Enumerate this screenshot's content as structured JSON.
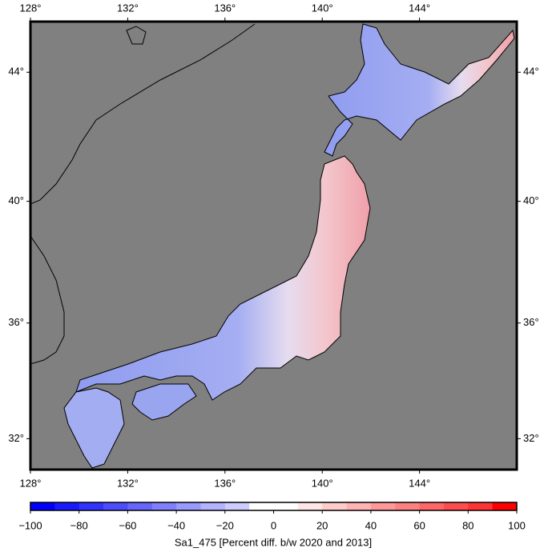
{
  "map": {
    "projection": "mercator",
    "xlim": [
      128,
      148
    ],
    "ylim": [
      30.9,
      45.5
    ],
    "background": "#808080",
    "xticks": [
      {
        "value": 128,
        "label": "128°"
      },
      {
        "value": 132,
        "label": "132°"
      },
      {
        "value": 136,
        "label": "136°"
      },
      {
        "value": 140,
        "label": "140°"
      },
      {
        "value": 144,
        "label": "144°"
      }
    ],
    "yticks": [
      {
        "value": 32,
        "label": "32°"
      },
      {
        "value": 36,
        "label": "36°"
      },
      {
        "value": 40,
        "label": "40°"
      },
      {
        "value": 44,
        "label": "44°"
      }
    ]
  },
  "colorbar": {
    "range": [
      -100,
      100
    ],
    "label": "Sa1_475 [Percent diff. b/w 2020 and 2013]",
    "ticks": [
      {
        "value": -100,
        "label": "−100"
      },
      {
        "value": -80,
        "label": "−80"
      },
      {
        "value": -60,
        "label": "−60"
      },
      {
        "value": -40,
        "label": "−40"
      },
      {
        "value": -20,
        "label": "−20"
      },
      0,
      20,
      40,
      60,
      80,
      100
    ],
    "colors": [
      "#0000ff",
      "#1a1aff",
      "#3333ff",
      "#4d4dff",
      "#6666ff",
      "#8080ff",
      "#9999ff",
      "#b3b3ff",
      "#ccccff",
      "#ffffff",
      "#ffffff",
      "#ffe6e6",
      "#ffcccc",
      "#ffb3b3",
      "#ff9999",
      "#ff8080",
      "#ff6666",
      "#ff4d4d",
      "#ff3333",
      "#ff0000"
    ]
  }
}
